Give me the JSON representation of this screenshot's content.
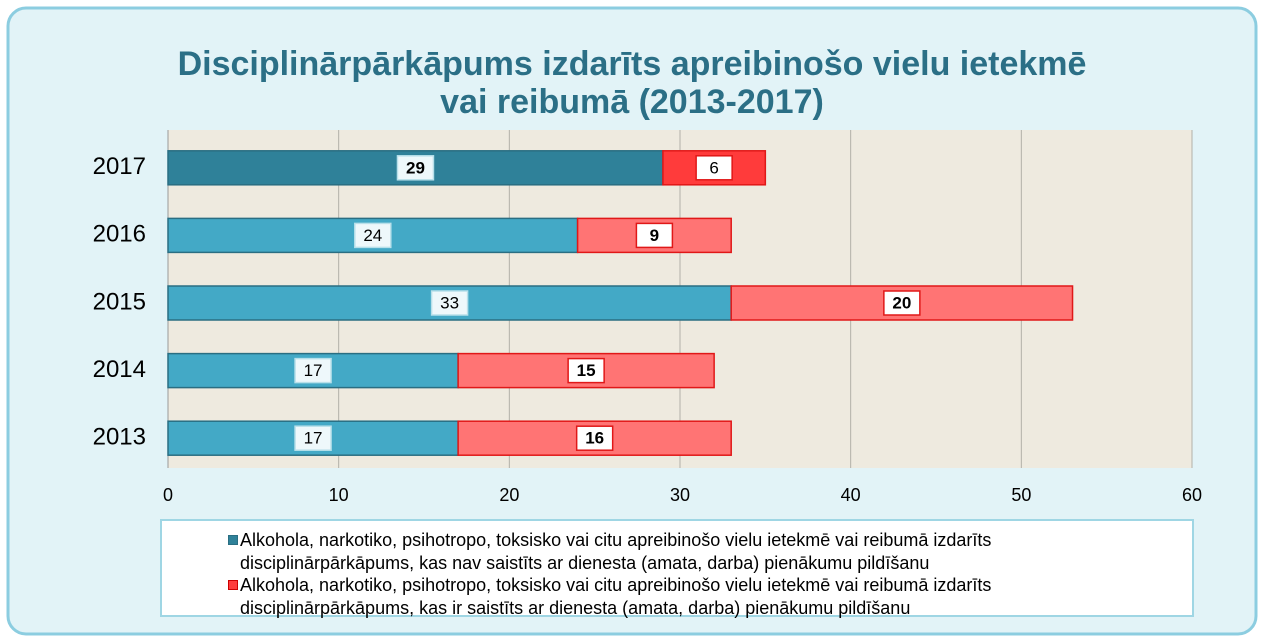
{
  "chart_data": {
    "type": "stacked_barh",
    "title": "Disciplinārpārkāpums izdarīts apreibinošo vielu ietekmē vai reibumā (2013-2017)",
    "categories": [
      "2017",
      "2016",
      "2015",
      "2014",
      "2013"
    ],
    "series": [
      {
        "name": "Alkohola, narkotiko, psihotropo, toksisko vai citu apreibinošo vielu ietekmē vai reibumā izdarīts disciplinārpārkāpums, kas nav saistīts ar dienesta (amata, darba) pienākumu pildīšanu",
        "color": "#2f8199",
        "colors": [
          "#2f8199",
          "#43a9c6",
          "#43a9c6",
          "#43a9c6",
          "#43a9c6"
        ],
        "label_bold": [
          true,
          false,
          false,
          false,
          false
        ],
        "values": [
          29,
          24,
          33,
          17,
          17
        ]
      },
      {
        "name": "Alkohola, narkotiko, psihotropo, toksisko vai citu apreibinošo vielu ietekmē vai reibumā izdarīts disciplinārpārkāpums, kas ir saistīts ar dienesta (amata, darba) pienākumu pildīšanu",
        "color": "#ff3b3b",
        "colors": [
          "#ff3b3b",
          "#ff7474",
          "#ff7474",
          "#ff7474",
          "#ff7474"
        ],
        "label_bold": [
          false,
          true,
          true,
          true,
          true
        ],
        "values": [
          6,
          9,
          20,
          15,
          16
        ]
      }
    ],
    "xlim": [
      0,
      60
    ],
    "xticks": [
      0,
      10,
      20,
      30,
      40,
      50,
      60
    ],
    "grid": true
  }
}
